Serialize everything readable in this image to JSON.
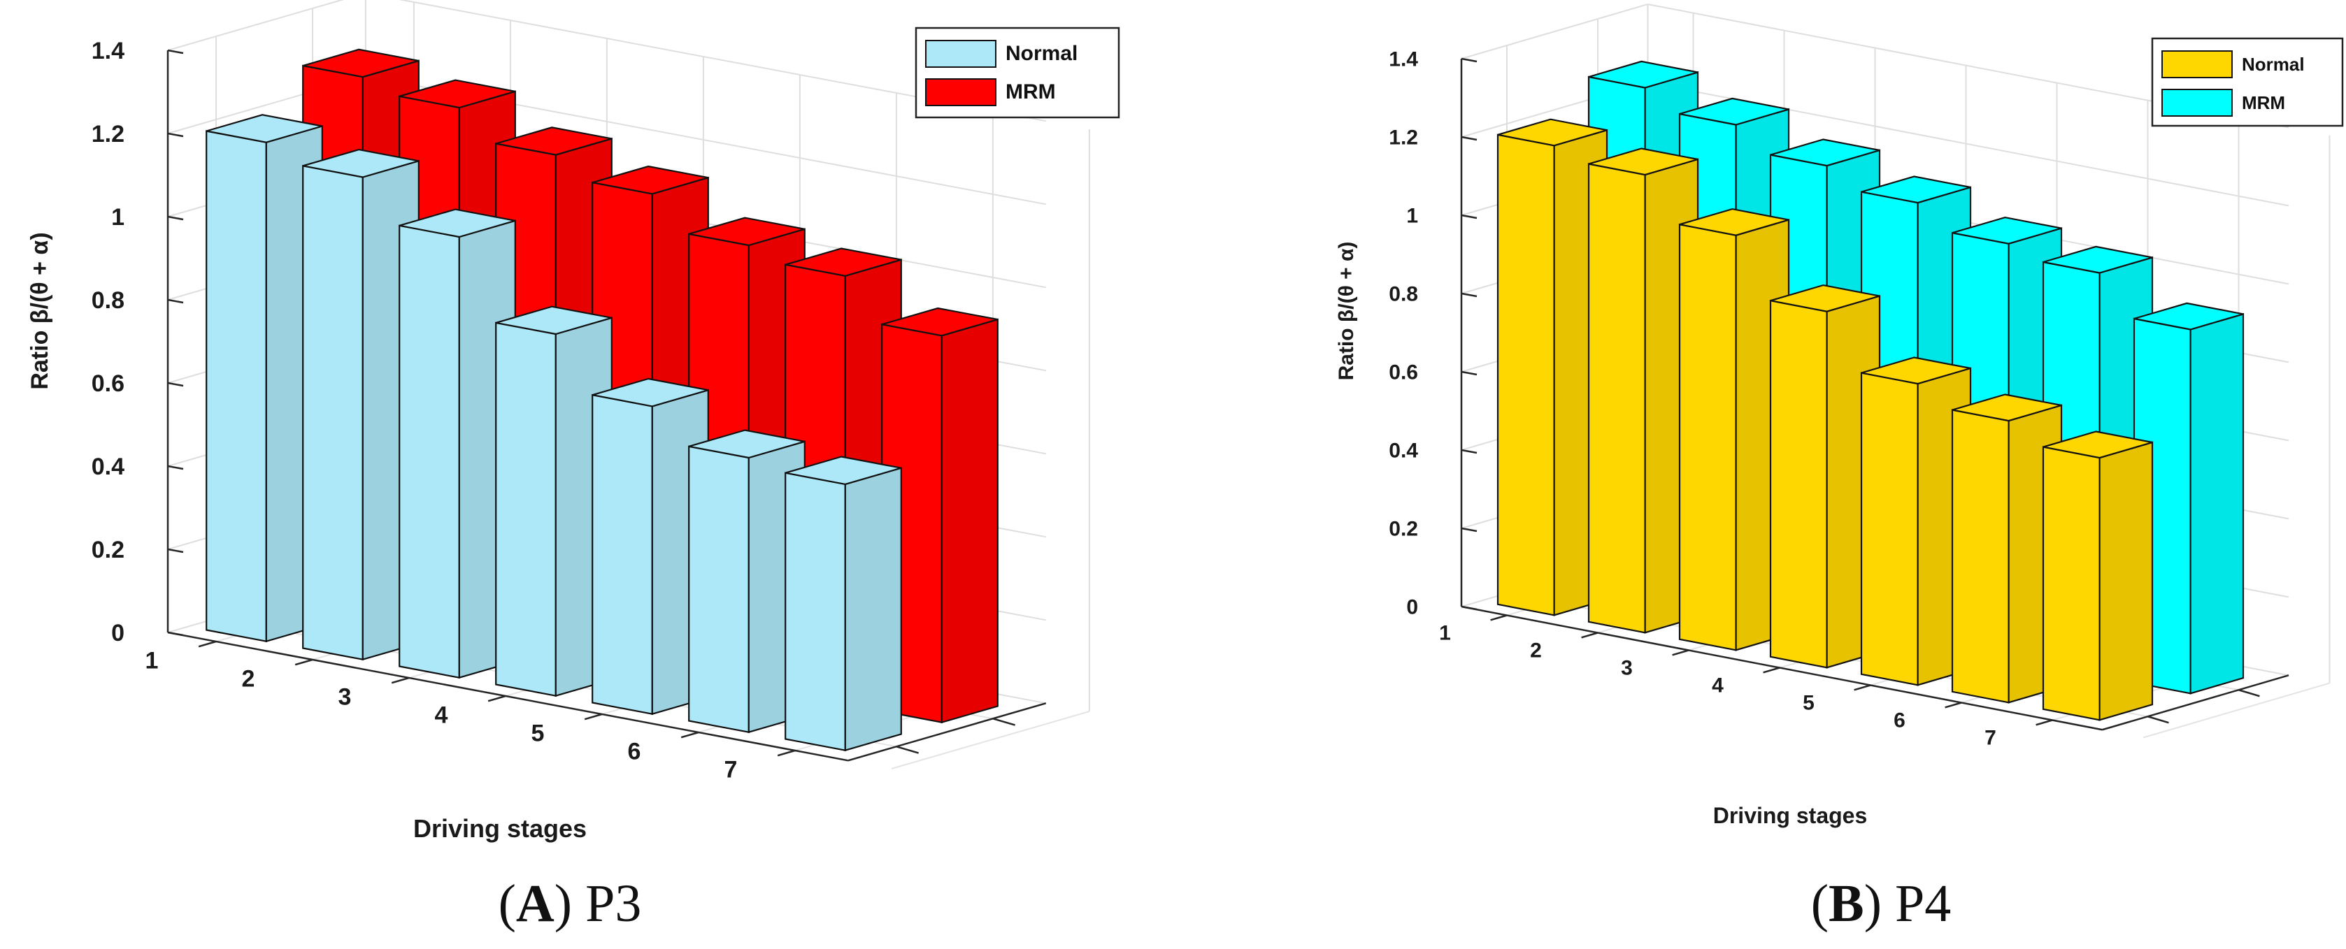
{
  "chart_data": [
    {
      "type": "bar3d",
      "panel_letter": "A",
      "panel_name": "P3",
      "xlabel": "Driving stages",
      "ylabel": "Ratio β/(θ + α)",
      "ylim": [
        0,
        1.4
      ],
      "yticks": [
        "0",
        "0.2",
        "0.4",
        "0.6",
        "0.8",
        "1",
        "1.2",
        "1.4"
      ],
      "categories": [
        "1",
        "2",
        "3",
        "4",
        "5",
        "6",
        "7"
      ],
      "legend_position": "top-right",
      "series": [
        {
          "name": "Normal",
          "color": "#ade8f8",
          "values": [
            1.2,
            1.16,
            1.06,
            0.87,
            0.74,
            0.66,
            0.64
          ]
        },
        {
          "name": "MRM",
          "color": "#ff0000",
          "values": [
            1.29,
            1.26,
            1.19,
            1.14,
            1.06,
            1.03,
            0.93
          ]
        }
      ]
    },
    {
      "type": "bar3d",
      "panel_letter": "B",
      "panel_name": "P4",
      "xlabel": "Driving stages",
      "ylabel": "Ratio β/(θ + α)",
      "ylim": [
        0,
        1.4
      ],
      "yticks": [
        "0",
        "0.2",
        "0.4",
        "0.6",
        "0.8",
        "1",
        "1.2",
        "1.4"
      ],
      "categories": [
        "1",
        "2",
        "3",
        "4",
        "5",
        "6",
        "7"
      ],
      "legend_position": "top-right",
      "series": [
        {
          "name": "Normal",
          "color": "#ffd700",
          "values": [
            1.2,
            1.17,
            1.06,
            0.91,
            0.77,
            0.72,
            0.67
          ]
        },
        {
          "name": "MRM",
          "color": "#00ffff",
          "values": [
            1.28,
            1.23,
            1.17,
            1.12,
            1.06,
            1.03,
            0.93
          ]
        }
      ]
    }
  ]
}
